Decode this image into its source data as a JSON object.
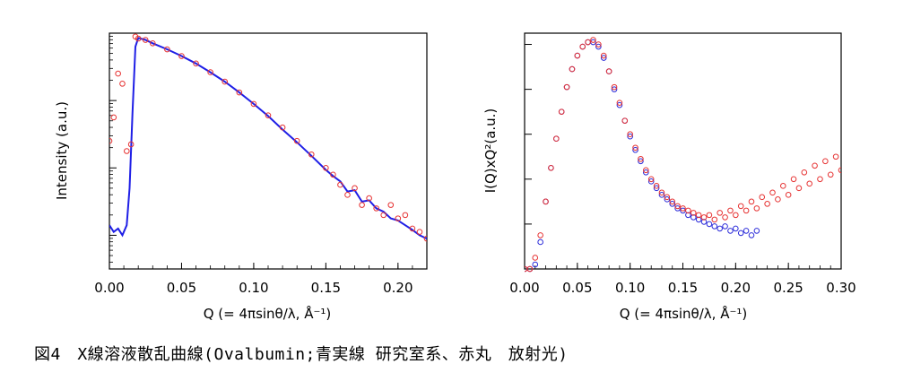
{
  "caption": "図4　X線溶液散乱曲線(Ovalbumin;青実線 研究室系、赤丸　放射光)",
  "colors": {
    "lab_line": "#1f1fe6",
    "synchrotron_marker": "#e63333",
    "lab_marker": "#2b2bd9"
  },
  "chart_data": [
    {
      "type": "line",
      "xlabel": "Q (= 4πsinθ/λ, Å⁻¹)",
      "ylabel": "Intensity (a.u.)",
      "xlim": [
        0.0,
        0.22
      ],
      "xticks": [
        "0.00",
        "0.05",
        "0.10",
        "0.15",
        "0.20"
      ],
      "ylim": [
        -2.5,
        1.0
      ],
      "yscale": "log",
      "grid": false,
      "series": [
        {
          "style": "line",
          "color": "#1f1fe6",
          "x": [
            0.0,
            0.003,
            0.006,
            0.009,
            0.012,
            0.014,
            0.016,
            0.018,
            0.02,
            0.025,
            0.03,
            0.04,
            0.05,
            0.06,
            0.07,
            0.08,
            0.09,
            0.1,
            0.11,
            0.12,
            0.13,
            0.14,
            0.15,
            0.155,
            0.16,
            0.165,
            0.17,
            0.175,
            0.18,
            0.185,
            0.19,
            0.195,
            0.2,
            0.205,
            0.21,
            0.215,
            0.22
          ],
          "y": [
            -1.85,
            -1.95,
            -1.9,
            -2.0,
            -1.85,
            -1.3,
            -0.2,
            0.8,
            0.93,
            0.9,
            0.85,
            0.76,
            0.66,
            0.55,
            0.42,
            0.28,
            0.12,
            -0.05,
            -0.23,
            -0.43,
            -0.62,
            -0.82,
            -1.03,
            -1.12,
            -1.2,
            -1.35,
            -1.33,
            -1.5,
            -1.48,
            -1.6,
            -1.65,
            -1.75,
            -1.78,
            -1.85,
            -1.92,
            -2.0,
            -2.05
          ]
        },
        {
          "style": "markers",
          "color": "#e63333",
          "x": [
            0.0,
            0.003,
            0.006,
            0.009,
            0.012,
            0.015,
            0.018,
            0.02,
            0.025,
            0.03,
            0.04,
            0.05,
            0.06,
            0.07,
            0.08,
            0.09,
            0.1,
            0.11,
            0.12,
            0.13,
            0.14,
            0.15,
            0.155,
            0.16,
            0.165,
            0.17,
            0.175,
            0.18,
            0.185,
            0.19,
            0.195,
            0.2,
            0.205,
            0.21,
            0.215,
            0.22
          ],
          "y": [
            -0.6,
            -0.25,
            0.4,
            0.25,
            -0.75,
            -0.65,
            0.95,
            0.92,
            0.9,
            0.85,
            0.76,
            0.66,
            0.55,
            0.42,
            0.28,
            0.12,
            -0.05,
            -0.22,
            -0.4,
            -0.6,
            -0.8,
            -1.0,
            -1.1,
            -1.25,
            -1.4,
            -1.3,
            -1.55,
            -1.45,
            -1.6,
            -1.7,
            -1.55,
            -1.75,
            -1.7,
            -1.9,
            -1.95,
            -2.05
          ]
        }
      ]
    },
    {
      "type": "scatter",
      "xlabel": "Q (= 4πsinθ/λ, Å⁻¹)",
      "ylabel": "I(Q)xQ²(a.u.)",
      "xlim": [
        0.0,
        0.3
      ],
      "xticks": [
        "0.00",
        "0.05",
        "0.10",
        "0.15",
        "0.20",
        "0.25",
        "0.30"
      ],
      "ylim": [
        0.0,
        1.05
      ],
      "grid": false,
      "series": [
        {
          "style": "markers",
          "color": "#2b2bd9",
          "x": [
            0.0,
            0.005,
            0.01,
            0.015,
            0.02,
            0.025,
            0.03,
            0.035,
            0.04,
            0.045,
            0.05,
            0.055,
            0.06,
            0.065,
            0.07,
            0.075,
            0.08,
            0.085,
            0.09,
            0.095,
            0.1,
            0.105,
            0.11,
            0.115,
            0.12,
            0.125,
            0.13,
            0.135,
            0.14,
            0.145,
            0.15,
            0.155,
            0.16,
            0.165,
            0.17,
            0.175,
            0.18,
            0.185,
            0.19,
            0.195,
            0.2,
            0.205,
            0.21,
            0.215,
            0.22
          ],
          "y": [
            0.0,
            0.0,
            0.02,
            0.12,
            0.3,
            0.45,
            0.58,
            0.7,
            0.81,
            0.89,
            0.95,
            0.99,
            1.01,
            1.01,
            0.99,
            0.94,
            0.88,
            0.8,
            0.73,
            0.66,
            0.59,
            0.53,
            0.48,
            0.43,
            0.39,
            0.36,
            0.33,
            0.31,
            0.29,
            0.27,
            0.26,
            0.24,
            0.23,
            0.22,
            0.21,
            0.2,
            0.19,
            0.18,
            0.19,
            0.17,
            0.18,
            0.16,
            0.17,
            0.15,
            0.17
          ]
        },
        {
          "style": "markers",
          "color": "#e63333",
          "x": [
            0.0,
            0.005,
            0.01,
            0.015,
            0.02,
            0.025,
            0.03,
            0.035,
            0.04,
            0.045,
            0.05,
            0.055,
            0.06,
            0.065,
            0.07,
            0.075,
            0.08,
            0.085,
            0.09,
            0.095,
            0.1,
            0.105,
            0.11,
            0.115,
            0.12,
            0.125,
            0.13,
            0.135,
            0.14,
            0.145,
            0.15,
            0.155,
            0.16,
            0.165,
            0.17,
            0.175,
            0.18,
            0.185,
            0.19,
            0.195,
            0.2,
            0.205,
            0.21,
            0.215,
            0.22,
            0.225,
            0.23,
            0.235,
            0.24,
            0.245,
            0.25,
            0.255,
            0.26,
            0.265,
            0.27,
            0.275,
            0.28,
            0.285,
            0.29,
            0.295,
            0.3
          ],
          "y": [
            0.0,
            0.0,
            0.05,
            0.15,
            0.3,
            0.45,
            0.58,
            0.7,
            0.81,
            0.89,
            0.95,
            0.99,
            1.01,
            1.02,
            1.0,
            0.95,
            0.88,
            0.81,
            0.74,
            0.66,
            0.6,
            0.54,
            0.49,
            0.44,
            0.4,
            0.37,
            0.34,
            0.32,
            0.3,
            0.28,
            0.27,
            0.26,
            0.25,
            0.24,
            0.23,
            0.24,
            0.22,
            0.25,
            0.23,
            0.26,
            0.24,
            0.28,
            0.26,
            0.3,
            0.27,
            0.32,
            0.29,
            0.34,
            0.31,
            0.37,
            0.33,
            0.4,
            0.36,
            0.43,
            0.38,
            0.46,
            0.4,
            0.48,
            0.42,
            0.5,
            0.44
          ]
        }
      ]
    }
  ]
}
